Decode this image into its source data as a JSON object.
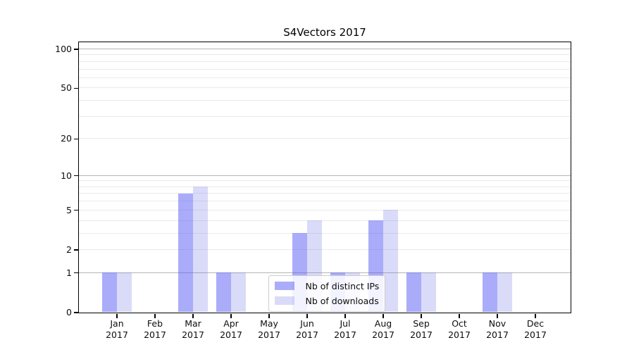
{
  "chart_data": {
    "type": "bar",
    "title": "S4Vectors 2017",
    "categories": [
      {
        "month": "Jan",
        "year": "2017"
      },
      {
        "month": "Feb",
        "year": "2017"
      },
      {
        "month": "Mar",
        "year": "2017"
      },
      {
        "month": "Apr",
        "year": "2017"
      },
      {
        "month": "May",
        "year": "2017"
      },
      {
        "month": "Jun",
        "year": "2017"
      },
      {
        "month": "Jul",
        "year": "2017"
      },
      {
        "month": "Aug",
        "year": "2017"
      },
      {
        "month": "Sep",
        "year": "2017"
      },
      {
        "month": "Oct",
        "year": "2017"
      },
      {
        "month": "Nov",
        "year": "2017"
      },
      {
        "month": "Dec",
        "year": "2017"
      }
    ],
    "series": [
      {
        "name": "Nb of distinct IPs",
        "color": "rgba(85,89,245,0.5)",
        "values": [
          1,
          0,
          7,
          1,
          0,
          3,
          1,
          4,
          1,
          0,
          1,
          0
        ]
      },
      {
        "name": "Nb of downloads",
        "color": "rgba(107,111,227,0.25)",
        "values": [
          1,
          0,
          8,
          1,
          0,
          4,
          1,
          5,
          1,
          0,
          1,
          0
        ]
      }
    ],
    "xlabel": "",
    "ylabel": "",
    "yscale": "log10(1+x)",
    "ylim": [
      0,
      113
    ],
    "yticks": [
      100,
      50,
      20,
      10,
      5,
      2,
      1,
      0
    ],
    "major_gridlines": [
      1,
      10,
      100
    ],
    "minor_gridlines": [
      2,
      3,
      4,
      5,
      6,
      7,
      8,
      9,
      20,
      30,
      40,
      50,
      60,
      70,
      80,
      90
    ],
    "grid": "horizontal",
    "legend_position": "lower center"
  }
}
